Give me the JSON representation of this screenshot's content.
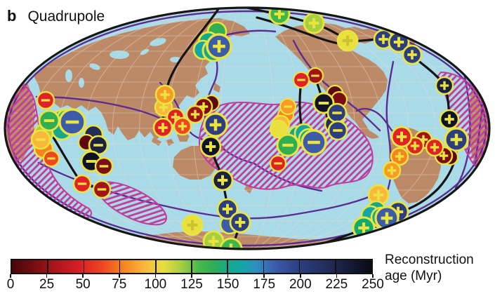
{
  "panel": {
    "letter": "b",
    "title": "Quadrupole"
  },
  "colorbar": {
    "min_myr": 0,
    "max_myr": 250,
    "tick_labels": [
      "0",
      "25",
      "50",
      "75",
      "100",
      "125",
      "150",
      "175",
      "200",
      "225",
      "250"
    ],
    "label_line1": "Reconstruction",
    "label_line2": "age (Myr)",
    "gradient_stops": [
      {
        "p": 0,
        "c": "#4a070c"
      },
      {
        "p": 5,
        "c": "#6b0c10"
      },
      {
        "p": 11,
        "c": "#a3141a"
      },
      {
        "p": 19,
        "c": "#dc1f26"
      },
      {
        "p": 25,
        "c": "#ef4522"
      },
      {
        "p": 31,
        "c": "#f58420"
      },
      {
        "p": 37,
        "c": "#f9b83c"
      },
      {
        "p": 42,
        "c": "#e9df3e"
      },
      {
        "p": 47,
        "c": "#a8cf41"
      },
      {
        "p": 52,
        "c": "#4ab74d"
      },
      {
        "p": 56,
        "c": "#2fae53"
      },
      {
        "p": 60,
        "c": "#16a88c"
      },
      {
        "p": 64,
        "c": "#12a6a6"
      },
      {
        "p": 68,
        "c": "#2e8ec2"
      },
      {
        "p": 73,
        "c": "#3c5caa"
      },
      {
        "p": 80,
        "c": "#2c3e80"
      },
      {
        "p": 88,
        "c": "#222c58"
      },
      {
        "p": 95,
        "c": "#141732"
      },
      {
        "p": 100,
        "c": "#0a0b16"
      }
    ]
  },
  "map_colors": {
    "ocean": "#a9dae8",
    "land": "#bd8a67",
    "plate_boundary": "#5b2d92",
    "llsvp_hatch": "#c33b9c",
    "outline": "#161616",
    "ring_yellow": "#eae43f"
  },
  "chart_data": {
    "type": "scatter",
    "title": "Quadrupole",
    "projection": "mollweide-world-map",
    "colorbar_label": "Reconstruction age (Myr)",
    "age_range_myr": [
      0,
      250
    ],
    "point_format": [
      "x_px",
      "y_px",
      "radius_px",
      "age_color_hex",
      "sign"
    ],
    "points": [
      [
        309,
        45,
        13,
        "#2fae53",
        ""
      ],
      [
        297,
        60,
        14,
        "#16a88c",
        ""
      ],
      [
        289,
        71,
        13,
        "#12a6a6",
        ""
      ],
      [
        304,
        72,
        15,
        "#16a88c",
        ""
      ],
      [
        312,
        66,
        17,
        "#3c5caa",
        "+"
      ],
      [
        398,
        20,
        14,
        "#3db64b",
        "+"
      ],
      [
        447,
        33,
        14,
        "#a8cf41",
        "+"
      ],
      [
        495,
        58,
        14,
        "#e9df3e",
        "+"
      ],
      [
        546,
        56,
        13,
        "#2c3e80",
        "+"
      ],
      [
        568,
        60,
        14,
        "#2c3e80",
        "+"
      ],
      [
        587,
        78,
        13,
        "#2c3e80",
        "+"
      ],
      [
        633,
        122,
        12,
        "#1b2045",
        "+"
      ],
      [
        640,
        170,
        13,
        "#101226",
        "+"
      ],
      [
        650,
        199,
        16,
        "#2c3e80",
        "+"
      ],
      [
        641,
        224,
        11,
        "#5c0a0f",
        ""
      ],
      [
        632,
        222,
        12,
        "#7c0e13",
        "+"
      ],
      [
        603,
        199,
        12,
        "#a3141a",
        "+"
      ],
      [
        619,
        210,
        12,
        "#e02127",
        "+"
      ],
      [
        591,
        208,
        12,
        "#e02127",
        "+"
      ],
      [
        572,
        195,
        14,
        "#e02127",
        "+"
      ],
      [
        569,
        223,
        12,
        "#f58420",
        "+"
      ],
      [
        558,
        243,
        12,
        "#f79a28",
        "+"
      ],
      [
        539,
        278,
        14,
        "#f9b83c",
        "+"
      ],
      [
        536,
        300,
        13,
        "#16a88c",
        ""
      ],
      [
        528,
        307,
        13,
        "#12a6a6",
        ""
      ],
      [
        543,
        310,
        14,
        "#16a88c",
        ""
      ],
      [
        567,
        302,
        14,
        "#2c3e80",
        "+"
      ],
      [
        551,
        311,
        16,
        "#3c5caa",
        "+"
      ],
      [
        518,
        325,
        15,
        "#12aa6e",
        "+"
      ],
      [
        327,
        320,
        13,
        "#3c5caa",
        ""
      ],
      [
        324,
        298,
        14,
        "#2c3e80",
        "+"
      ],
      [
        342,
        317,
        14,
        "#2c3e80",
        "+"
      ],
      [
        274,
        321,
        14,
        "#e9df3e",
        "+"
      ],
      [
        304,
        344,
        14,
        "#a8cf41",
        "+"
      ],
      [
        329,
        355,
        15,
        "#3db64b",
        "+"
      ],
      [
        300,
        209,
        14,
        "#101226",
        "+"
      ],
      [
        317,
        257,
        14,
        "#1b2045",
        "+"
      ],
      [
        301,
        147,
        11,
        "#5c0a0f",
        ""
      ],
      [
        290,
        152,
        12,
        "#7c0e13",
        "+"
      ],
      [
        278,
        163,
        12,
        "#a3141a",
        "+"
      ],
      [
        233,
        153,
        12,
        "#f9b83c",
        "+"
      ],
      [
        235,
        135,
        13,
        "#f79a28",
        "+"
      ],
      [
        250,
        167,
        12,
        "#e02127",
        "+"
      ],
      [
        260,
        180,
        12,
        "#f04522",
        "+"
      ],
      [
        232,
        182,
        13,
        "#e02127",
        "+"
      ],
      [
        307,
        178,
        16,
        "#2c3e80",
        "+"
      ],
      [
        477,
        133,
        11,
        "#5c0a0f",
        ""
      ],
      [
        483,
        142,
        11,
        "#7c0e13",
        ""
      ],
      [
        449,
        108,
        11,
        "#a3141a",
        "-"
      ],
      [
        429,
        114,
        11,
        "#e02127",
        "-"
      ],
      [
        461,
        147,
        14,
        "#101226",
        "-"
      ],
      [
        476,
        177,
        13,
        "#222c58",
        ""
      ],
      [
        480,
        161,
        13,
        "#2c3e80",
        "-"
      ],
      [
        481,
        186,
        13,
        "#2c3e80",
        "-"
      ],
      [
        407,
        164,
        11,
        "#f58420",
        ""
      ],
      [
        400,
        177,
        12,
        "#f9b83c",
        ""
      ],
      [
        397,
        184,
        12,
        "#e9df3e",
        ""
      ],
      [
        410,
        152,
        11,
        "#f79a28",
        "-"
      ],
      [
        424,
        193,
        13,
        "#16a88c",
        ""
      ],
      [
        433,
        190,
        13,
        "#12a6a6",
        ""
      ],
      [
        440,
        198,
        14,
        "#16a88c",
        ""
      ],
      [
        410,
        207,
        15,
        "#2fae53",
        "-"
      ],
      [
        447,
        203,
        17,
        "#3c5caa",
        "-"
      ],
      [
        396,
        233,
        11,
        "#e02127",
        "-"
      ],
      [
        88,
        170,
        13,
        "#16a88c",
        ""
      ],
      [
        95,
        170,
        14,
        "#12a6a6",
        ""
      ],
      [
        88,
        185,
        14,
        "#16a88c",
        ""
      ],
      [
        62,
        190,
        13,
        "#a8cf41",
        ""
      ],
      [
        62,
        212,
        13,
        "#f58420",
        ""
      ],
      [
        58,
        199,
        13,
        "#f9b83c",
        "-"
      ],
      [
        65,
        143,
        12,
        "#e02127",
        "-"
      ],
      [
        70,
        172,
        14,
        "#2fae53",
        "-"
      ],
      [
        103,
        174,
        18,
        "#3c5caa",
        "-"
      ],
      [
        73,
        226,
        11,
        "#f04522",
        "-"
      ],
      [
        133,
        192,
        13,
        "#222c58",
        ""
      ],
      [
        123,
        203,
        11,
        "#5c0a0f",
        ""
      ],
      [
        140,
        207,
        13,
        "#1b2045",
        "-"
      ],
      [
        130,
        230,
        14,
        "#101226",
        "-"
      ],
      [
        148,
        237,
        12,
        "#7c0e13",
        "-"
      ],
      [
        117,
        262,
        12,
        "#e02127",
        "-"
      ],
      [
        145,
        270,
        12,
        "#a3141a",
        "-"
      ]
    ]
  }
}
